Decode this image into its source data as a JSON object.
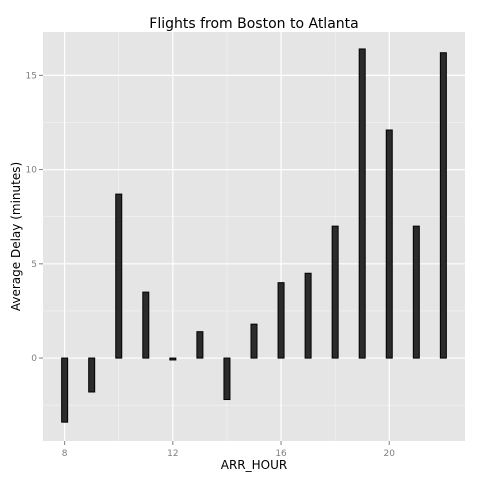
{
  "chart_data": {
    "type": "bar",
    "title": "Flights from Boston to Atlanta",
    "xlabel": "ARR_HOUR",
    "ylabel": "Average Delay (minutes)",
    "x": [
      8,
      9,
      10,
      11,
      12,
      13,
      14,
      15,
      16,
      17,
      18,
      19,
      20,
      21,
      22
    ],
    "values": [
      -3.4,
      -1.8,
      8.7,
      3.5,
      -0.1,
      1.4,
      -2.2,
      1.8,
      4.0,
      4.5,
      7.0,
      16.4,
      12.1,
      7.0,
      16.2
    ],
    "xlim": [
      7.2,
      22.8
    ],
    "ylim": [
      -4.4,
      17.3
    ],
    "xticks": [
      8,
      12,
      16,
      20
    ],
    "yticks": [
      0,
      5,
      10,
      15
    ],
    "grid": true,
    "colors": {
      "panel": "#e5e5e5",
      "grid": "#ffffff",
      "bar_fill": "#2b2b2b",
      "bar_stroke": "#000000"
    }
  }
}
